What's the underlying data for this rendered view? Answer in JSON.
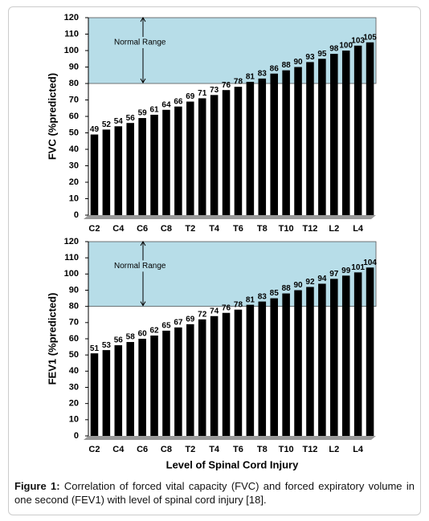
{
  "chart_data": [
    {
      "type": "bar",
      "ylabel": "FVC (%predicted)",
      "categories": [
        "C2",
        null,
        "C4",
        null,
        "C6",
        null,
        "C8",
        null,
        "T2",
        null,
        "T4",
        null,
        "T6",
        null,
        "T8",
        null,
        "T10",
        null,
        "T12",
        null,
        "L2",
        null,
        "L4",
        null
      ],
      "values": [
        49,
        52,
        54,
        56,
        59,
        61,
        64,
        66,
        69,
        71,
        73,
        76,
        78,
        81,
        83,
        86,
        88,
        90,
        93,
        95,
        98,
        100,
        103,
        105
      ],
      "color": "#000000",
      "ylim": [
        0,
        120
      ],
      "yticks": [
        0,
        10,
        20,
        30,
        40,
        50,
        60,
        70,
        80,
        90,
        100,
        110,
        120
      ],
      "normal_range": [
        80,
        120
      ],
      "normal_range_label": "Normal Range",
      "normal_range_color": "#b7dde8"
    },
    {
      "type": "bar",
      "ylabel": "FEV1 (%predicted)",
      "xlabel": "Level of Spinal Cord Injury",
      "categories": [
        "C2",
        null,
        "C4",
        null,
        "C6",
        null,
        "C8",
        null,
        "T2",
        null,
        "T4",
        null,
        "T6",
        null,
        "T8",
        null,
        "T10",
        null,
        "T12",
        null,
        "L2",
        null,
        "L4",
        null
      ],
      "values": [
        51,
        53,
        56,
        58,
        60,
        62,
        65,
        67,
        69,
        72,
        74,
        76,
        78,
        81,
        83,
        85,
        88,
        90,
        92,
        94,
        97,
        99,
        101,
        104
      ],
      "color": "#000000",
      "ylim": [
        0,
        120
      ],
      "yticks": [
        0,
        10,
        20,
        30,
        40,
        50,
        60,
        70,
        80,
        90,
        100,
        110,
        120
      ],
      "normal_range": [
        80,
        120
      ],
      "normal_range_label": "Normal Range",
      "normal_range_color": "#b7dde8"
    }
  ],
  "caption": {
    "label": "Figure 1:",
    "text": "Correlation of forced vital capacity (FVC) and forced expiratory volume in one second (FEV1) with level of spinal cord injury [18]."
  }
}
